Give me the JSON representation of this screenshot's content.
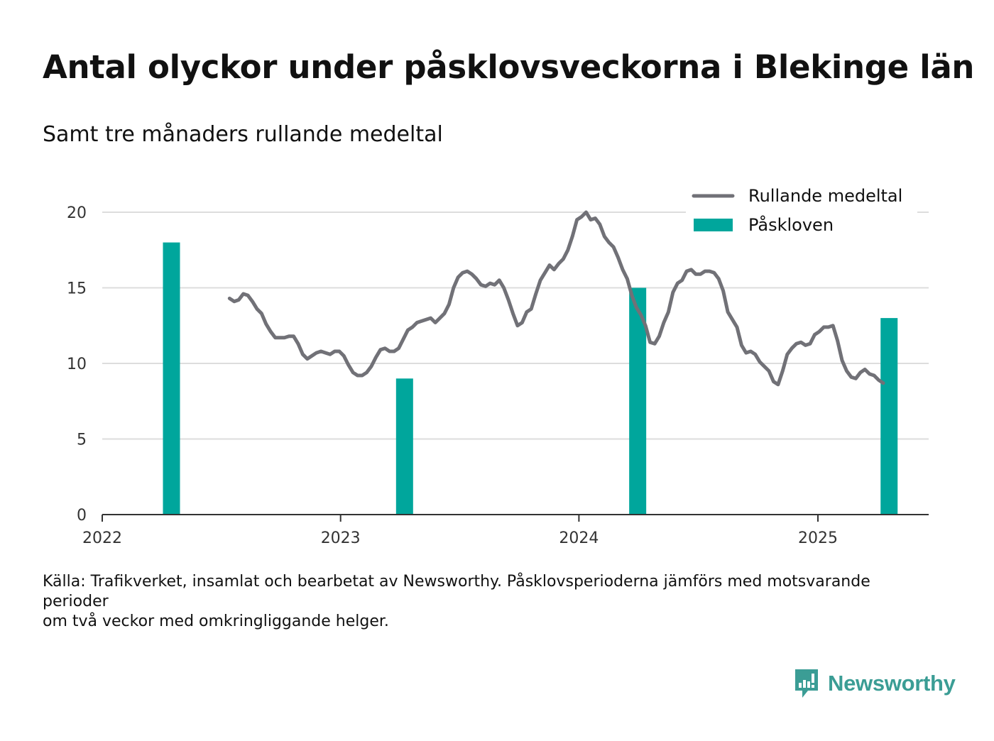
{
  "header": {
    "title": "Antal olyckor under påsklovsveckorna i Blekinge län",
    "subtitle": "Samt tre månaders rullande medeltal"
  },
  "footer": {
    "source_line1": "Källa: Trafikverket, insamlat och bearbetat av Newsworthy. Påsklovsperioderna jämförs med motsvarande perioder",
    "source_line2": "om två veckor med omkringliggande helger."
  },
  "brand": {
    "name": "Newsworthy",
    "icon": "newsworthy-logo-icon",
    "color": "#3b9d95"
  },
  "chart_data": {
    "type": "bar+line",
    "title": "Antal olyckor under påsklovsveckorna i Blekinge län",
    "subtitle": "Samt tre månaders rullande medeltal",
    "xlabel": "",
    "ylabel": "",
    "x_ticks": [
      "2022",
      "2023",
      "2024",
      "2025"
    ],
    "y_ticks": [
      0,
      5,
      10,
      15,
      20
    ],
    "ylim": [
      0,
      21
    ],
    "xlim": [
      "2022-01-01",
      "2025-06-01"
    ],
    "grid": true,
    "legend": "top-right",
    "colors": {
      "line": "#717177",
      "bar": "#00a69c",
      "grid": "#dddddd",
      "axis": "#333333"
    },
    "series": [
      {
        "name": "Rullande medeltal",
        "type": "line",
        "points": [
          [
            "2022-07-15",
            14.3
          ],
          [
            "2022-07-22",
            14.1
          ],
          [
            "2022-07-29",
            14.2
          ],
          [
            "2022-08-05",
            14.6
          ],
          [
            "2022-08-12",
            14.5
          ],
          [
            "2022-08-19",
            14.1
          ],
          [
            "2022-08-26",
            13.6
          ],
          [
            "2022-09-02",
            13.3
          ],
          [
            "2022-09-09",
            12.6
          ],
          [
            "2022-09-16",
            12.1
          ],
          [
            "2022-09-23",
            11.7
          ],
          [
            "2022-09-30",
            11.7
          ],
          [
            "2022-10-07",
            11.7
          ],
          [
            "2022-10-14",
            11.8
          ],
          [
            "2022-10-21",
            11.8
          ],
          [
            "2022-10-28",
            11.3
          ],
          [
            "2022-11-04",
            10.6
          ],
          [
            "2022-11-11",
            10.3
          ],
          [
            "2022-11-18",
            10.5
          ],
          [
            "2022-11-25",
            10.7
          ],
          [
            "2022-12-02",
            10.8
          ],
          [
            "2022-12-09",
            10.7
          ],
          [
            "2022-12-16",
            10.6
          ],
          [
            "2022-12-23",
            10.8
          ],
          [
            "2022-12-30",
            10.8
          ],
          [
            "2023-01-06",
            10.5
          ],
          [
            "2023-01-13",
            9.9
          ],
          [
            "2023-01-20",
            9.4
          ],
          [
            "2023-01-27",
            9.2
          ],
          [
            "2023-02-03",
            9.2
          ],
          [
            "2023-02-10",
            9.4
          ],
          [
            "2023-02-17",
            9.8
          ],
          [
            "2023-02-24",
            10.4
          ],
          [
            "2023-03-03",
            10.9
          ],
          [
            "2023-03-10",
            11.0
          ],
          [
            "2023-03-17",
            10.8
          ],
          [
            "2023-03-24",
            10.8
          ],
          [
            "2023-03-31",
            11.0
          ],
          [
            "2023-04-07",
            11.6
          ],
          [
            "2023-04-14",
            12.2
          ],
          [
            "2023-04-21",
            12.4
          ],
          [
            "2023-04-28",
            12.7
          ],
          [
            "2023-05-05",
            12.8
          ],
          [
            "2023-05-12",
            12.9
          ],
          [
            "2023-05-19",
            13.0
          ],
          [
            "2023-05-26",
            12.7
          ],
          [
            "2023-06-02",
            13.0
          ],
          [
            "2023-06-09",
            13.3
          ],
          [
            "2023-06-16",
            13.9
          ],
          [
            "2023-06-23",
            15.0
          ],
          [
            "2023-06-30",
            15.7
          ],
          [
            "2023-07-07",
            16.0
          ],
          [
            "2023-07-14",
            16.1
          ],
          [
            "2023-07-21",
            15.9
          ],
          [
            "2023-07-28",
            15.6
          ],
          [
            "2023-08-04",
            15.2
          ],
          [
            "2023-08-11",
            15.1
          ],
          [
            "2023-08-18",
            15.3
          ],
          [
            "2023-08-25",
            15.2
          ],
          [
            "2023-09-01",
            15.5
          ],
          [
            "2023-09-08",
            15.0
          ],
          [
            "2023-09-15",
            14.2
          ],
          [
            "2023-09-22",
            13.3
          ],
          [
            "2023-09-29",
            12.5
          ],
          [
            "2023-10-06",
            12.7
          ],
          [
            "2023-10-13",
            13.4
          ],
          [
            "2023-10-20",
            13.6
          ],
          [
            "2023-10-27",
            14.6
          ],
          [
            "2023-11-03",
            15.5
          ],
          [
            "2023-11-10",
            16.0
          ],
          [
            "2023-11-17",
            16.5
          ],
          [
            "2023-11-24",
            16.2
          ],
          [
            "2023-12-01",
            16.6
          ],
          [
            "2023-12-08",
            16.9
          ],
          [
            "2023-12-15",
            17.5
          ],
          [
            "2023-12-22",
            18.4
          ],
          [
            "2023-12-29",
            19.5
          ],
          [
            "2024-01-05",
            19.7
          ],
          [
            "2024-01-12",
            20.0
          ],
          [
            "2024-01-19",
            19.5
          ],
          [
            "2024-01-26",
            19.6
          ],
          [
            "2024-02-02",
            19.2
          ],
          [
            "2024-02-09",
            18.4
          ],
          [
            "2024-02-16",
            18.0
          ],
          [
            "2024-02-23",
            17.7
          ],
          [
            "2024-03-01",
            17.0
          ],
          [
            "2024-03-08",
            16.2
          ],
          [
            "2024-03-15",
            15.6
          ],
          [
            "2024-03-22",
            14.5
          ],
          [
            "2024-03-29",
            13.7
          ],
          [
            "2024-04-05",
            13.2
          ],
          [
            "2024-04-12",
            12.5
          ],
          [
            "2024-04-19",
            11.4
          ],
          [
            "2024-04-26",
            11.3
          ],
          [
            "2024-05-03",
            11.8
          ],
          [
            "2024-05-10",
            12.7
          ],
          [
            "2024-05-17",
            13.4
          ],
          [
            "2024-05-24",
            14.7
          ],
          [
            "2024-05-31",
            15.3
          ],
          [
            "2024-06-07",
            15.5
          ],
          [
            "2024-06-14",
            16.1
          ],
          [
            "2024-06-21",
            16.2
          ],
          [
            "2024-06-28",
            15.9
          ],
          [
            "2024-07-05",
            15.9
          ],
          [
            "2024-07-12",
            16.1
          ],
          [
            "2024-07-19",
            16.1
          ],
          [
            "2024-07-26",
            16.0
          ],
          [
            "2024-08-02",
            15.6
          ],
          [
            "2024-08-09",
            14.8
          ],
          [
            "2024-08-16",
            13.4
          ],
          [
            "2024-08-23",
            12.9
          ],
          [
            "2024-08-30",
            12.4
          ],
          [
            "2024-09-06",
            11.2
          ],
          [
            "2024-09-13",
            10.7
          ],
          [
            "2024-09-20",
            10.8
          ],
          [
            "2024-09-27",
            10.6
          ],
          [
            "2024-10-04",
            10.1
          ],
          [
            "2024-10-11",
            9.8
          ],
          [
            "2024-10-18",
            9.5
          ],
          [
            "2024-10-25",
            8.8
          ],
          [
            "2024-11-01",
            8.6
          ],
          [
            "2024-11-08",
            9.5
          ],
          [
            "2024-11-15",
            10.6
          ],
          [
            "2024-11-22",
            11.0
          ],
          [
            "2024-11-29",
            11.3
          ],
          [
            "2024-12-06",
            11.4
          ],
          [
            "2024-12-13",
            11.2
          ],
          [
            "2024-12-20",
            11.3
          ],
          [
            "2024-12-27",
            11.9
          ],
          [
            "2025-01-03",
            12.1
          ],
          [
            "2025-01-10",
            12.4
          ],
          [
            "2025-01-17",
            12.4
          ],
          [
            "2025-01-24",
            12.5
          ],
          [
            "2025-01-31",
            11.5
          ],
          [
            "2025-02-07",
            10.2
          ],
          [
            "2025-02-14",
            9.5
          ],
          [
            "2025-02-21",
            9.1
          ],
          [
            "2025-02-28",
            9.0
          ],
          [
            "2025-03-07",
            9.4
          ],
          [
            "2025-03-14",
            9.6
          ],
          [
            "2025-03-21",
            9.3
          ],
          [
            "2025-03-28",
            9.2
          ],
          [
            "2025-04-04",
            8.9
          ],
          [
            "2025-04-11",
            8.7
          ]
        ]
      },
      {
        "name": "Påskloven",
        "type": "bar",
        "points": [
          [
            "2022-04-17",
            18
          ],
          [
            "2023-04-09",
            9
          ],
          [
            "2024-03-31",
            15
          ],
          [
            "2025-04-20",
            13
          ]
        ]
      }
    ]
  }
}
